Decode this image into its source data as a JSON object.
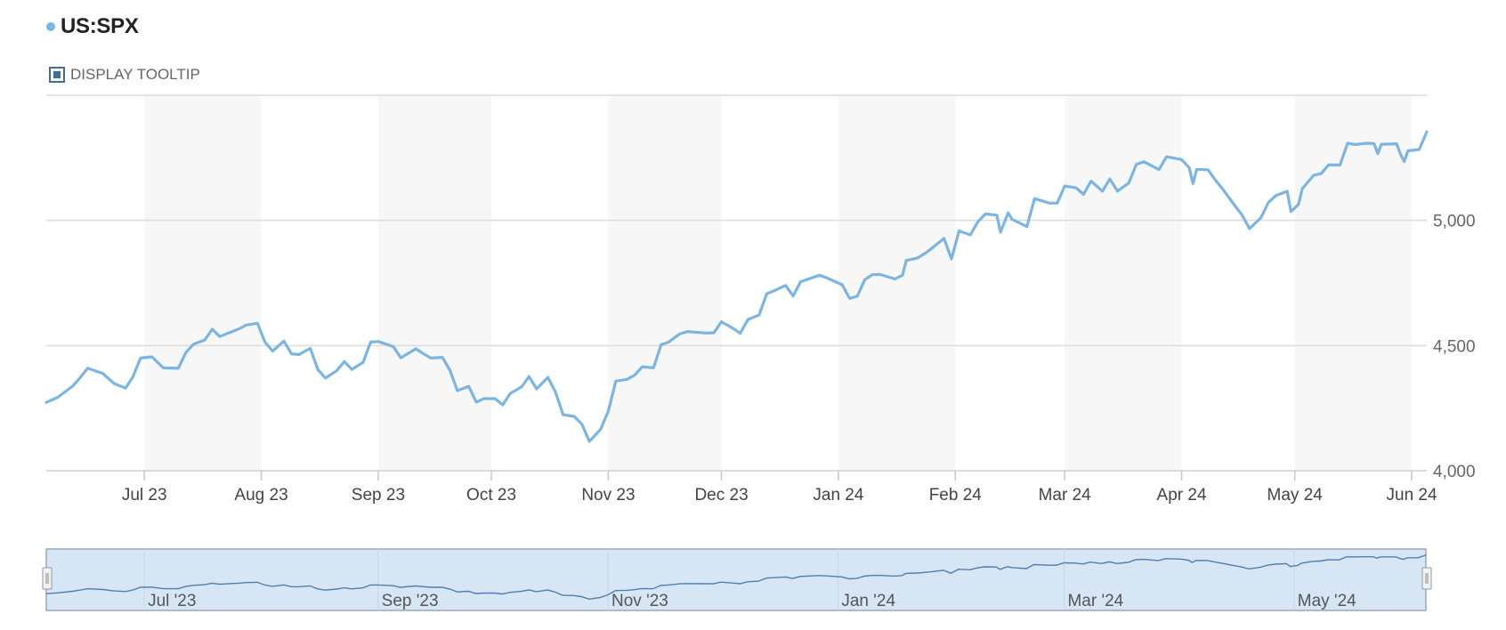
{
  "legend": {
    "label": "US:SPX",
    "color": "#7cb5e2"
  },
  "tooltip_toggle": {
    "label": "DISPLAY TOOLTIP",
    "checked": true
  },
  "colors": {
    "line": "#7cb5e2",
    "band": "#f7f7f7",
    "grid": "#dcdcdc",
    "navigator_fill": "#d6e6f5",
    "navigator_border": "#9aa9b8"
  },
  "chart_data": {
    "type": "line",
    "title": "",
    "xlabel": "",
    "ylabel": "",
    "ylim": [
      4000,
      5500
    ],
    "y_ticks": [
      4000,
      4500,
      5000
    ],
    "y_tick_labels": [
      "4,000",
      "4,500",
      "5,000"
    ],
    "x_range": [
      "2023-06-05",
      "2024-06-05"
    ],
    "x_ticks": [
      {
        "date": "2023-07-01",
        "label": "Jul 23"
      },
      {
        "date": "2023-08-01",
        "label": "Aug 23"
      },
      {
        "date": "2023-09-01",
        "label": "Sep 23"
      },
      {
        "date": "2023-10-01",
        "label": "Oct 23"
      },
      {
        "date": "2023-11-01",
        "label": "Nov 23"
      },
      {
        "date": "2023-12-01",
        "label": "Dec 23"
      },
      {
        "date": "2024-01-01",
        "label": "Jan 24"
      },
      {
        "date": "2024-02-01",
        "label": "Feb 24"
      },
      {
        "date": "2024-03-01",
        "label": "Mar 24"
      },
      {
        "date": "2024-04-01",
        "label": "Apr 24"
      },
      {
        "date": "2024-05-01",
        "label": "May 24"
      },
      {
        "date": "2024-06-01",
        "label": "Jun 24"
      }
    ],
    "grid": true,
    "alternate_month_bands": true,
    "series": [
      {
        "name": "US:SPX",
        "color": "#7cb5e2",
        "points": [
          [
            "2023-06-05",
            4273
          ],
          [
            "2023-06-08",
            4293
          ],
          [
            "2023-06-12",
            4338
          ],
          [
            "2023-06-14",
            4372
          ],
          [
            "2023-06-16",
            4410
          ],
          [
            "2023-06-20",
            4388
          ],
          [
            "2023-06-23",
            4348
          ],
          [
            "2023-06-26",
            4330
          ],
          [
            "2023-06-28",
            4376
          ],
          [
            "2023-06-30",
            4450
          ],
          [
            "2023-07-03",
            4455
          ],
          [
            "2023-07-06",
            4411
          ],
          [
            "2023-07-10",
            4409
          ],
          [
            "2023-07-12",
            4472
          ],
          [
            "2023-07-14",
            4505
          ],
          [
            "2023-07-17",
            4522
          ],
          [
            "2023-07-19",
            4565
          ],
          [
            "2023-07-21",
            4536
          ],
          [
            "2023-07-24",
            4554
          ],
          [
            "2023-07-26",
            4566
          ],
          [
            "2023-07-28",
            4582
          ],
          [
            "2023-07-31",
            4589
          ],
          [
            "2023-08-02",
            4513
          ],
          [
            "2023-08-04",
            4478
          ],
          [
            "2023-08-07",
            4518
          ],
          [
            "2023-08-09",
            4467
          ],
          [
            "2023-08-11",
            4464
          ],
          [
            "2023-08-14",
            4489
          ],
          [
            "2023-08-16",
            4404
          ],
          [
            "2023-08-18",
            4370
          ],
          [
            "2023-08-21",
            4399
          ],
          [
            "2023-08-23",
            4436
          ],
          [
            "2023-08-25",
            4405
          ],
          [
            "2023-08-28",
            4433
          ],
          [
            "2023-08-30",
            4514
          ],
          [
            "2023-09-01",
            4516
          ],
          [
            "2023-09-05",
            4496
          ],
          [
            "2023-09-07",
            4451
          ],
          [
            "2023-09-11",
            4487
          ],
          [
            "2023-09-13",
            4467
          ],
          [
            "2023-09-15",
            4450
          ],
          [
            "2023-09-18",
            4453
          ],
          [
            "2023-09-20",
            4402
          ],
          [
            "2023-09-22",
            4320
          ],
          [
            "2023-09-25",
            4337
          ],
          [
            "2023-09-27",
            4274
          ],
          [
            "2023-09-29",
            4288
          ],
          [
            "2023-10-02",
            4288
          ],
          [
            "2023-10-04",
            4263
          ],
          [
            "2023-10-06",
            4308
          ],
          [
            "2023-10-09",
            4335
          ],
          [
            "2023-10-11",
            4376
          ],
          [
            "2023-10-13",
            4327
          ],
          [
            "2023-10-16",
            4373
          ],
          [
            "2023-10-18",
            4314
          ],
          [
            "2023-10-20",
            4224
          ],
          [
            "2023-10-23",
            4217
          ],
          [
            "2023-10-25",
            4186
          ],
          [
            "2023-10-27",
            4117
          ],
          [
            "2023-10-30",
            4166
          ],
          [
            "2023-11-01",
            4237
          ],
          [
            "2023-11-03",
            4358
          ],
          [
            "2023-11-06",
            4365
          ],
          [
            "2023-11-08",
            4382
          ],
          [
            "2023-11-10",
            4415
          ],
          [
            "2023-11-13",
            4411
          ],
          [
            "2023-11-15",
            4503
          ],
          [
            "2023-11-17",
            4514
          ],
          [
            "2023-11-20",
            4547
          ],
          [
            "2023-11-22",
            4556
          ],
          [
            "2023-11-27",
            4550
          ],
          [
            "2023-11-29",
            4551
          ],
          [
            "2023-12-01",
            4595
          ],
          [
            "2023-12-04",
            4569
          ],
          [
            "2023-12-06",
            4549
          ],
          [
            "2023-12-08",
            4604
          ],
          [
            "2023-12-11",
            4622
          ],
          [
            "2023-12-13",
            4707
          ],
          [
            "2023-12-15",
            4719
          ],
          [
            "2023-12-18",
            4740
          ],
          [
            "2023-12-20",
            4698
          ],
          [
            "2023-12-22",
            4755
          ],
          [
            "2023-12-27",
            4781
          ],
          [
            "2023-12-29",
            4770
          ],
          [
            "2024-01-02",
            4743
          ],
          [
            "2024-01-04",
            4688
          ],
          [
            "2024-01-06",
            4697
          ],
          [
            "2024-01-08",
            4763
          ],
          [
            "2024-01-10",
            4783
          ],
          [
            "2024-01-12",
            4784
          ],
          [
            "2024-01-16",
            4766
          ],
          [
            "2024-01-18",
            4781
          ],
          [
            "2024-01-19",
            4840
          ],
          [
            "2024-01-22",
            4850
          ],
          [
            "2024-01-24",
            4868
          ],
          [
            "2024-01-26",
            4891
          ],
          [
            "2024-01-29",
            4928
          ],
          [
            "2024-01-31",
            4846
          ],
          [
            "2024-02-02",
            4958
          ],
          [
            "2024-02-05",
            4942
          ],
          [
            "2024-02-07",
            4995
          ],
          [
            "2024-02-09",
            5026
          ],
          [
            "2024-02-12",
            5021
          ],
          [
            "2024-02-13",
            4953
          ],
          [
            "2024-02-15",
            5030
          ],
          [
            "2024-02-16",
            5005
          ],
          [
            "2024-02-20",
            4975
          ],
          [
            "2024-02-22",
            5087
          ],
          [
            "2024-02-26",
            5069
          ],
          [
            "2024-02-28",
            5069
          ],
          [
            "2024-03-01",
            5137
          ],
          [
            "2024-03-04",
            5130
          ],
          [
            "2024-03-06",
            5104
          ],
          [
            "2024-03-08",
            5157
          ],
          [
            "2024-03-11",
            5117
          ],
          [
            "2024-03-13",
            5165
          ],
          [
            "2024-03-15",
            5117
          ],
          [
            "2024-03-18",
            5149
          ],
          [
            "2024-03-20",
            5224
          ],
          [
            "2024-03-22",
            5234
          ],
          [
            "2024-03-26",
            5203
          ],
          [
            "2024-03-28",
            5254
          ],
          [
            "2024-04-01",
            5243
          ],
          [
            "2024-04-03",
            5211
          ],
          [
            "2024-04-04",
            5147
          ],
          [
            "2024-04-05",
            5204
          ],
          [
            "2024-04-08",
            5202
          ],
          [
            "2024-04-10",
            5160
          ],
          [
            "2024-04-12",
            5123
          ],
          [
            "2024-04-15",
            5061
          ],
          [
            "2024-04-17",
            5022
          ],
          [
            "2024-04-19",
            4967
          ],
          [
            "2024-04-22",
            5010
          ],
          [
            "2024-04-24",
            5071
          ],
          [
            "2024-04-26",
            5099
          ],
          [
            "2024-04-29",
            5116
          ],
          [
            "2024-04-30",
            5035
          ],
          [
            "2024-05-02",
            5064
          ],
          [
            "2024-05-03",
            5127
          ],
          [
            "2024-05-06",
            5180
          ],
          [
            "2024-05-08",
            5187
          ],
          [
            "2024-05-10",
            5222
          ],
          [
            "2024-05-13",
            5221
          ],
          [
            "2024-05-15",
            5308
          ],
          [
            "2024-05-17",
            5303
          ],
          [
            "2024-05-20",
            5308
          ],
          [
            "2024-05-22",
            5307
          ],
          [
            "2024-05-23",
            5267
          ],
          [
            "2024-05-24",
            5304
          ],
          [
            "2024-05-28",
            5306
          ],
          [
            "2024-05-29",
            5266
          ],
          [
            "2024-05-30",
            5235
          ],
          [
            "2024-05-31",
            5278
          ],
          [
            "2024-06-03",
            5283
          ],
          [
            "2024-06-05",
            5354
          ]
        ]
      }
    ]
  },
  "navigator": {
    "x_ticks": [
      {
        "date": "2023-07-01",
        "label": "Jul '23"
      },
      {
        "date": "2023-09-01",
        "label": "Sep '23"
      },
      {
        "date": "2023-11-01",
        "label": "Nov '23"
      },
      {
        "date": "2024-01-01",
        "label": "Jan '24"
      },
      {
        "date": "2024-03-01",
        "label": "Mar '24"
      },
      {
        "date": "2024-05-01",
        "label": "May '24"
      }
    ],
    "selection": [
      "2023-06-05",
      "2024-06-05"
    ]
  }
}
